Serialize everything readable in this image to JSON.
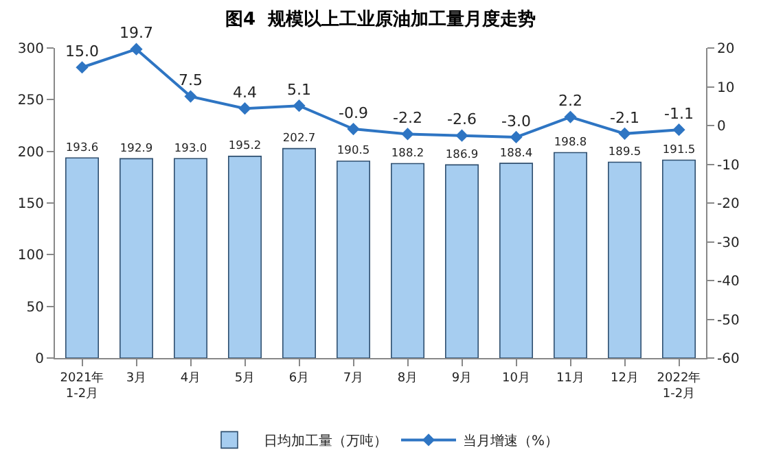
{
  "chart_data": {
    "type": "bar",
    "title": "图4  规模以上工业原油加工量月度走势",
    "categories": [
      "2021年\n1-2月",
      "3月",
      "4月",
      "5月",
      "6月",
      "7月",
      "8月",
      "9月",
      "10月",
      "11月",
      "12月",
      "2022年\n1-2月"
    ],
    "series": [
      {
        "name": "日均加工量（万吨）",
        "color": "#a6cdf0",
        "values": [
          193.6,
          192.9,
          193.0,
          195.2,
          202.7,
          190.5,
          188.2,
          186.9,
          188.4,
          198.8,
          189.5,
          191.5
        ],
        "value_labels": [
          "193.6",
          "192.9",
          "193.0",
          "195.2",
          "202.7",
          "190.5",
          "188.2",
          "186.9",
          "188.4",
          "198.8",
          "189.5",
          "191.5"
        ]
      },
      {
        "name": "当月增速（%）",
        "type": "line",
        "axis": "y2",
        "color": "#2e75c3",
        "values": [
          15.0,
          19.7,
          7.5,
          4.4,
          5.1,
          -0.9,
          -2.2,
          -2.6,
          -3.0,
          2.2,
          -2.1,
          -1.1
        ],
        "value_labels": [
          "15.0",
          "19.7",
          "7.5",
          "4.4",
          "5.1",
          "-0.9",
          "-2.2",
          "-2.6",
          "-3.0",
          "2.2",
          "-2.1",
          "-1.1"
        ]
      }
    ],
    "ylim": [
      0,
      300
    ],
    "yticks": [
      0,
      50,
      100,
      150,
      200,
      250,
      300
    ],
    "y2lim": [
      -60,
      20
    ],
    "y2ticks": [
      -60,
      -50,
      -40,
      -30,
      -20,
      -10,
      0,
      10,
      20
    ],
    "legend": "bottom",
    "marker": "diamond",
    "line_style": "solid"
  }
}
